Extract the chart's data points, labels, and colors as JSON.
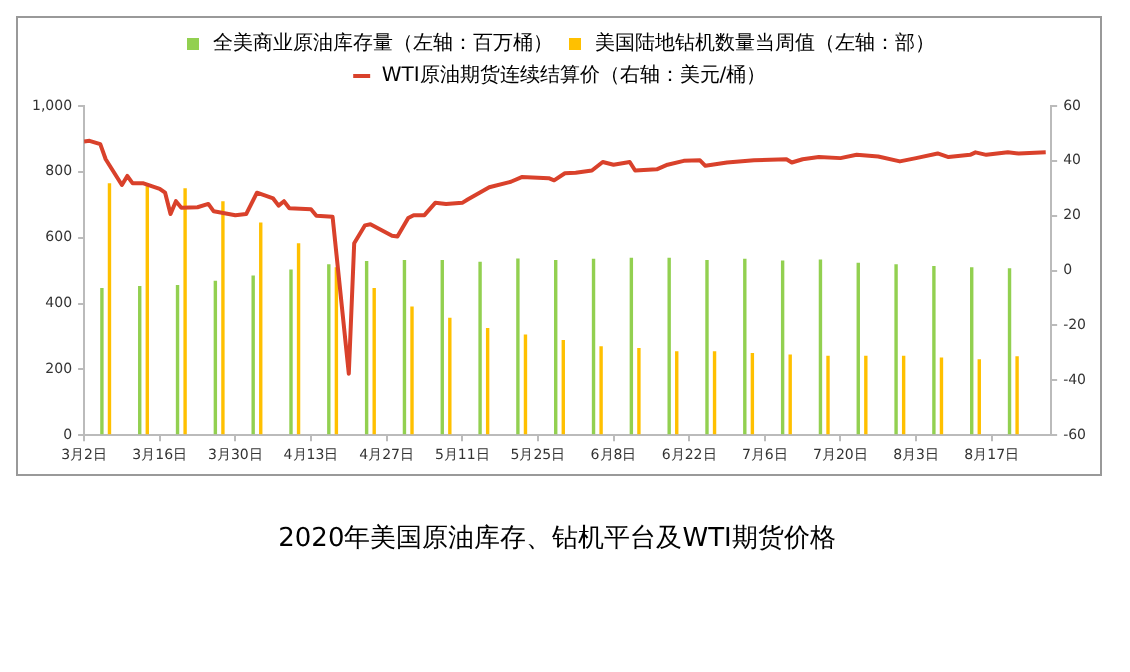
{
  "chart_data": {
    "type": "bar",
    "title": "2020年美国原油库存、钻机平台及WTI期货价格",
    "xlim": [
      "2020-03-02",
      "2020-08-28"
    ],
    "xticks": [
      {
        "value": "2020-03-02",
        "label": "3月2日"
      },
      {
        "value": "2020-03-16",
        "label": "3月16日"
      },
      {
        "value": "2020-03-30",
        "label": "3月30日"
      },
      {
        "value": "2020-04-13",
        "label": "4月13日"
      },
      {
        "value": "2020-04-27",
        "label": "4月27日"
      },
      {
        "value": "2020-05-11",
        "label": "5月11日"
      },
      {
        "value": "2020-05-25",
        "label": "5月25日"
      },
      {
        "value": "2020-06-08",
        "label": "6月8日"
      },
      {
        "value": "2020-06-22",
        "label": "6月22日"
      },
      {
        "value": "2020-07-06",
        "label": "7月6日"
      },
      {
        "value": "2020-07-20",
        "label": "7月20日"
      },
      {
        "value": "2020-08-03",
        "label": "8月3日"
      },
      {
        "value": "2020-08-17",
        "label": "8月17日"
      }
    ],
    "ylim": [
      0,
      1000
    ],
    "yticks": [
      0,
      200,
      400,
      600,
      800,
      {
        "value": 1000,
        "label": "1,000"
      }
    ],
    "y2lim": [
      -60,
      60
    ],
    "y2ticks": [
      -60,
      -40,
      -20,
      0,
      20,
      40,
      60
    ],
    "grid": false,
    "legend": "top",
    "x": [
      "2020-03-06",
      "2020-03-13",
      "2020-03-20",
      "2020-03-27",
      "2020-04-03",
      "2020-04-10",
      "2020-04-17",
      "2020-04-24",
      "2020-05-01",
      "2020-05-08",
      "2020-05-15",
      "2020-05-22",
      "2020-05-29",
      "2020-06-05",
      "2020-06-12",
      "2020-06-19",
      "2020-06-26",
      "2020-07-03",
      "2020-07-10",
      "2020-07-17",
      "2020-07-24",
      "2020-07-31",
      "2020-08-07",
      "2020-08-14",
      "2020-08-21"
    ],
    "series": [
      {
        "name": "全美商业原油库存量（左轴：百万桶）",
        "color": "#92d050",
        "values": [
          447,
          453,
          456,
          469,
          485,
          503,
          519,
          529,
          532,
          532,
          527,
          537,
          532,
          536,
          539,
          539,
          532,
          536,
          531,
          534,
          524,
          519,
          514,
          510,
          507
        ]
      },
      {
        "name": "美国陆地钻机数量当周值（左轴：部）",
        "color": "#ffc000",
        "values": [
          765,
          758,
          750,
          711,
          646,
          583,
          510,
          447,
          391,
          357,
          326,
          306,
          289,
          270,
          265,
          255,
          255,
          250,
          245,
          241,
          241,
          241,
          236,
          231,
          240
        ]
      },
      {
        "name": "WTI原油期货连续结算价（右轴：美元/桶）",
        "type": "line",
        "axis": "y2",
        "color": "#d9412b",
        "marker": "none",
        "x": [
          "2020-03-02",
          "2020-03-03",
          "2020-03-05",
          "2020-03-06",
          "2020-03-09",
          "2020-03-10",
          "2020-03-11",
          "2020-03-13",
          "2020-03-16",
          "2020-03-17",
          "2020-03-18",
          "2020-03-19",
          "2020-03-20",
          "2020-03-23",
          "2020-03-25",
          "2020-03-26",
          "2020-03-30",
          "2020-04-01",
          "2020-04-03",
          "2020-04-06",
          "2020-04-07",
          "2020-04-08",
          "2020-04-09",
          "2020-04-13",
          "2020-04-14",
          "2020-04-17",
          "2020-04-20",
          "2020-04-21",
          "2020-04-23",
          "2020-04-24",
          "2020-04-28",
          "2020-04-29",
          "2020-05-01",
          "2020-05-02",
          "2020-05-04",
          "2020-05-06",
          "2020-05-08",
          "2020-05-11",
          "2020-05-12",
          "2020-05-16",
          "2020-05-20",
          "2020-05-22",
          "2020-05-27",
          "2020-05-28",
          "2020-05-30",
          "2020-06-01",
          "2020-06-04",
          "2020-06-06",
          "2020-06-08",
          "2020-06-11",
          "2020-06-12",
          "2020-06-16",
          "2020-06-18",
          "2020-06-21",
          "2020-06-24",
          "2020-06-25",
          "2020-06-29",
          "2020-07-04",
          "2020-07-10",
          "2020-07-11",
          "2020-07-13",
          "2020-07-16",
          "2020-07-20",
          "2020-07-23",
          "2020-07-27",
          "2020-07-31",
          "2020-08-03",
          "2020-08-07",
          "2020-08-09",
          "2020-08-13",
          "2020-08-14",
          "2020-08-16",
          "2020-08-20",
          "2020-08-22",
          "2020-08-27"
        ],
        "values": [
          47.1,
          47.3,
          46.1,
          40.6,
          31.2,
          34.5,
          31.8,
          31.8,
          29.8,
          28.4,
          20.6,
          25.3,
          22.9,
          23.1,
          24.3,
          21.6,
          20.2,
          20.6,
          28.4,
          26.3,
          23.7,
          25.3,
          22.7,
          22.4,
          20,
          19.6,
          -37.6,
          10,
          16.5,
          16.9,
          12.7,
          12.4,
          19.2,
          20.2,
          20.2,
          24.7,
          24.3,
          24.7,
          25.9,
          30.4,
          32.4,
          34.1,
          33.7,
          32.9,
          35.5,
          35.7,
          36.5,
          39.6,
          38.6,
          39.6,
          36.5,
          36.9,
          38.6,
          40,
          40.2,
          38.2,
          39.4,
          40.2,
          40.6,
          39.4,
          40.6,
          41.4,
          41,
          42.2,
          41.6,
          39.8,
          41,
          42.7,
          41.4,
          42.2,
          43.1,
          42.2,
          43.1,
          42.7,
          43.1
        ]
      }
    ]
  }
}
